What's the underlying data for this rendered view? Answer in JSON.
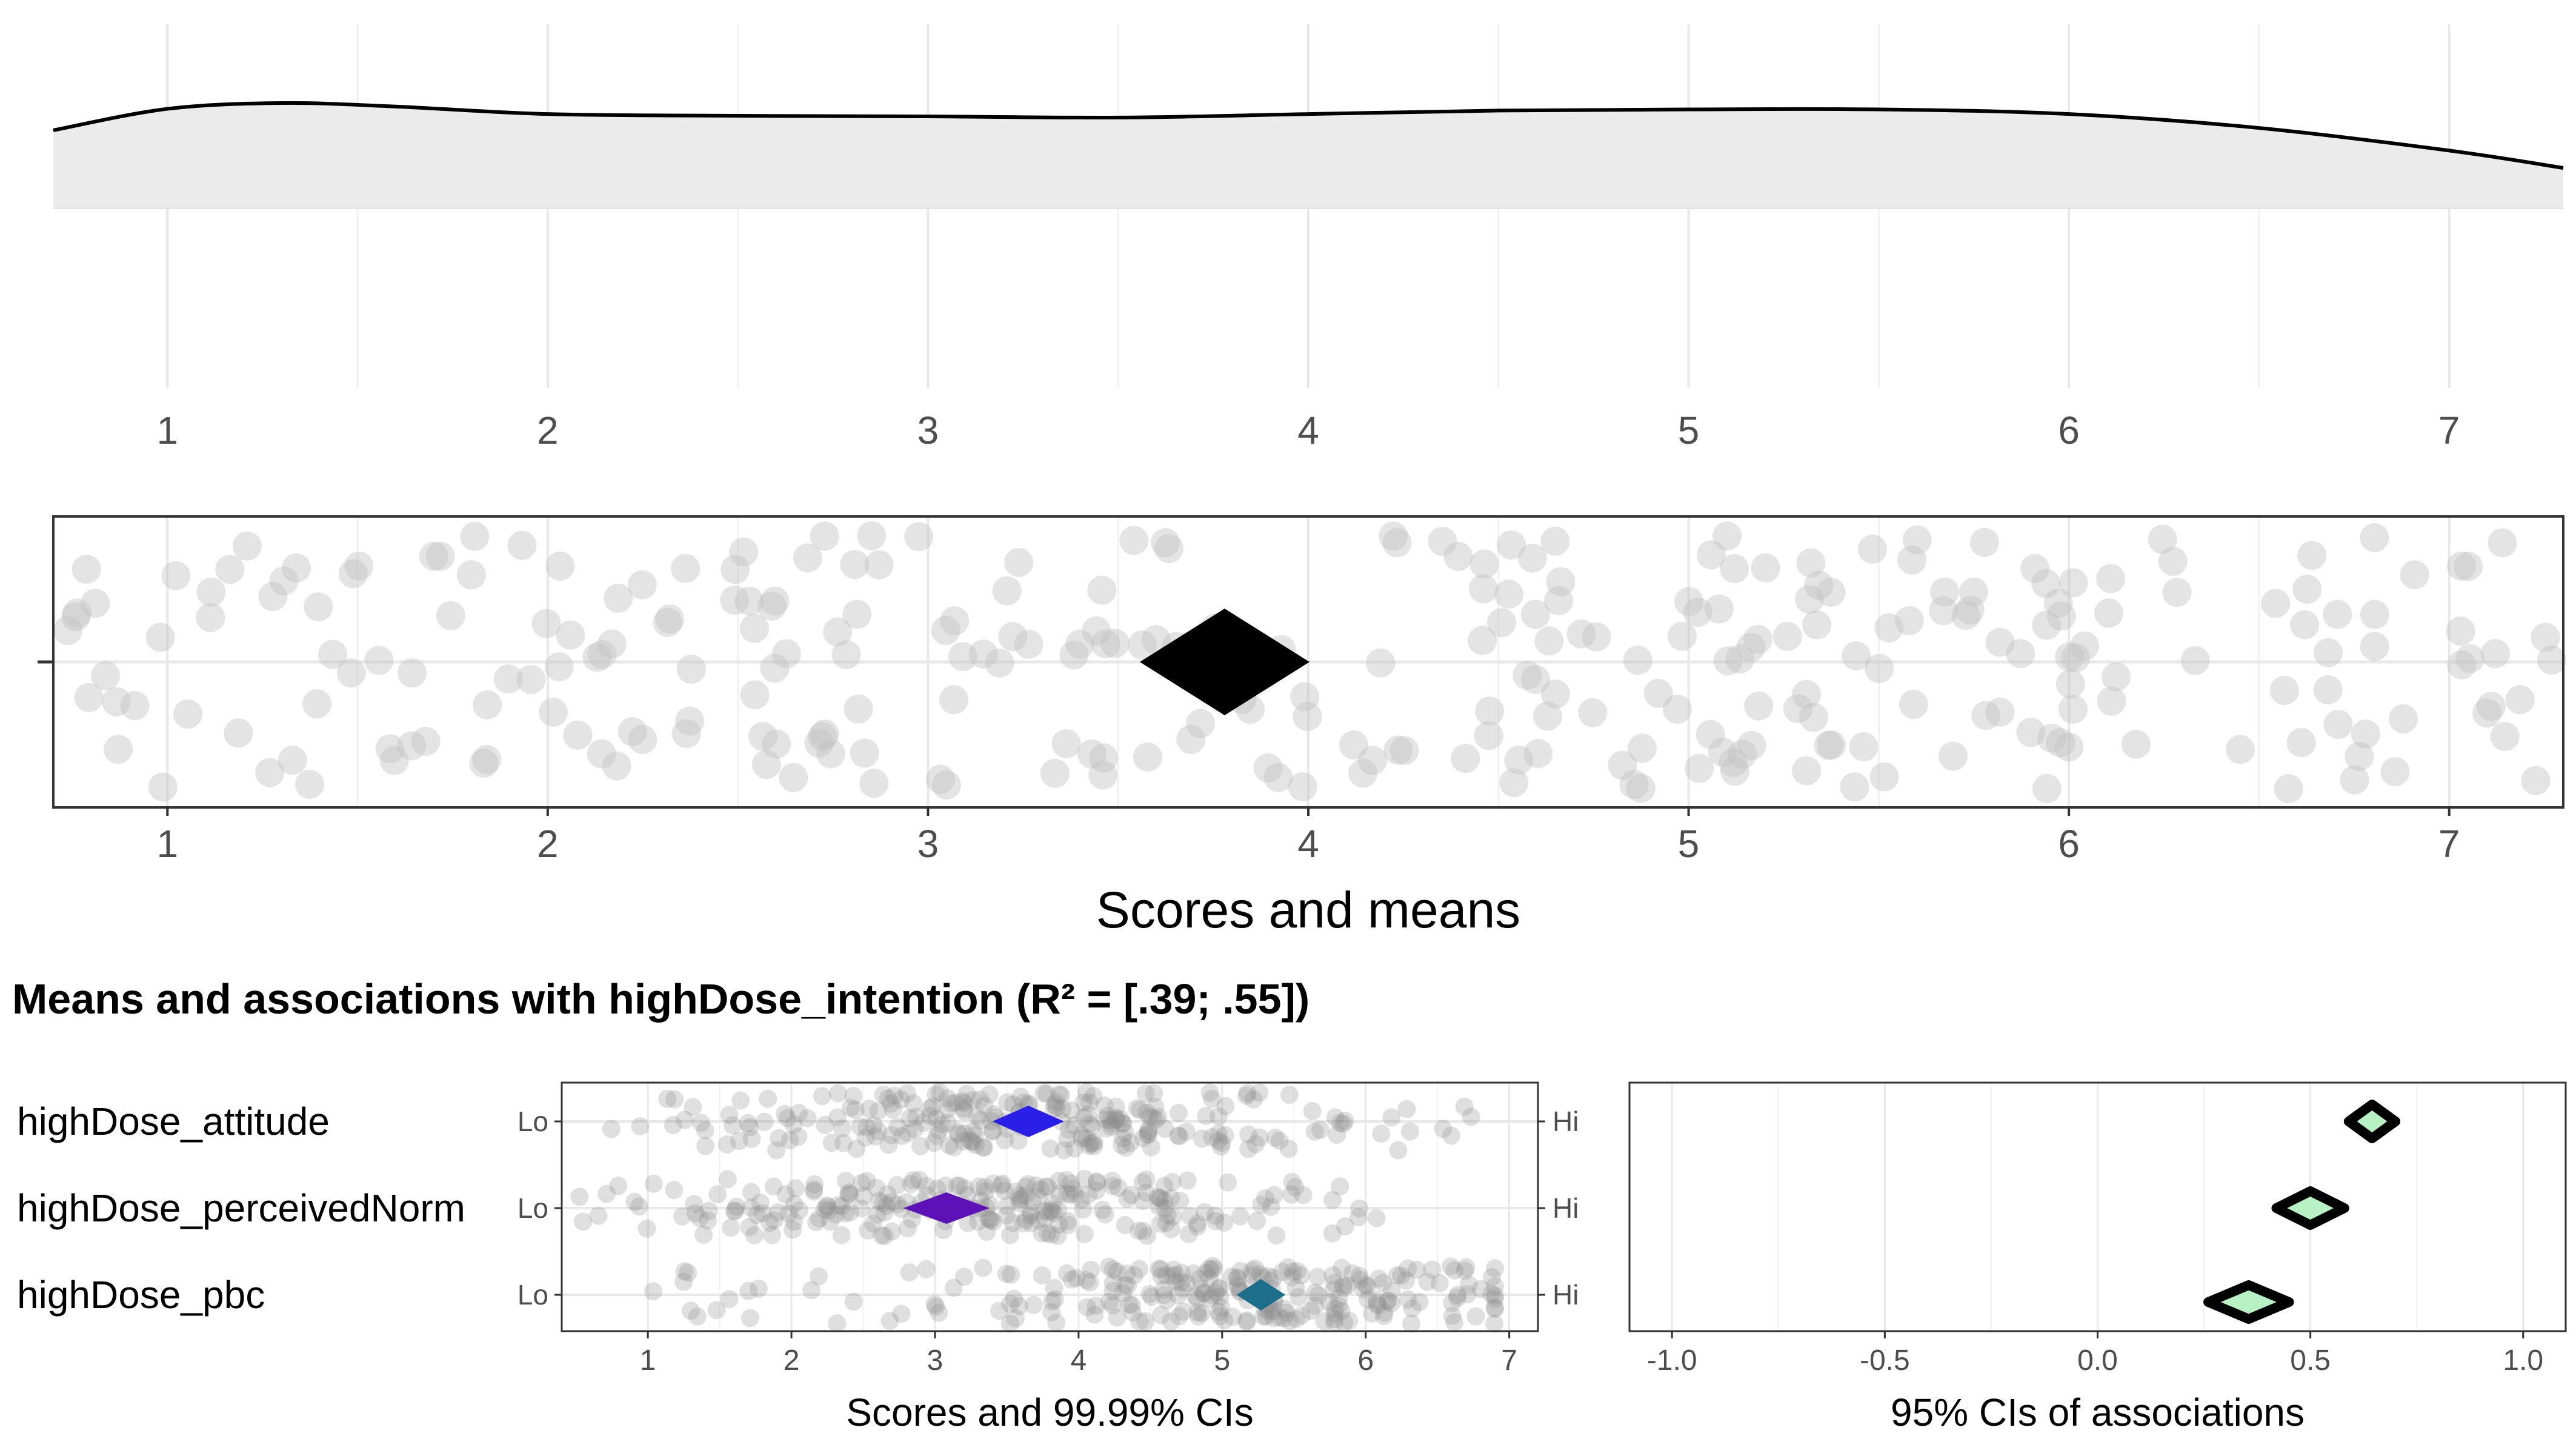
{
  "chart_data": [
    {
      "type": "area",
      "panel": "density",
      "x": [
        0.7,
        1.0,
        1.3,
        1.6,
        2.0,
        2.5,
        3.0,
        3.5,
        4.0,
        4.5,
        5.0,
        5.5,
        6.0,
        6.5,
        7.0,
        7.3
      ],
      "density": [
        0.133,
        0.17,
        0.18,
        0.174,
        0.161,
        0.158,
        0.157,
        0.155,
        0.161,
        0.167,
        0.169,
        0.169,
        0.161,
        0.137,
        0.098,
        0.068
      ],
      "xlim": [
        0.7,
        7.3
      ],
      "x_ticks": [
        "1",
        "2",
        "3",
        "4",
        "5",
        "6",
        "7"
      ],
      "grid": true
    },
    {
      "type": "scatter",
      "panel": "scores",
      "xlabel": "Scores and means",
      "xlim": [
        0.7,
        7.3
      ],
      "x_ticks": [
        "1",
        "2",
        "3",
        "4",
        "5",
        "6",
        "7"
      ],
      "mean": 3.78,
      "point_count": 300,
      "point_range": [
        0.7,
        7.3
      ],
      "grid": true
    },
    {
      "type": "scatter",
      "panel": "item-means",
      "title": "Means and associations with highDose_intention (R² = [.39; .55])",
      "xlabel": "Scores and 99.99% CIs",
      "xlim": [
        0.4,
        7.2
      ],
      "x_ticks": [
        "1",
        "2",
        "3",
        "4",
        "5",
        "6",
        "7"
      ],
      "anchor_low": "Lo",
      "anchor_high": "Hi",
      "items": [
        {
          "label": "highDose_attitude",
          "mean": 3.65,
          "ci": [
            3.4,
            3.9
          ],
          "color": "#2a1fe6",
          "point_range": [
            0.7,
            6.8
          ]
        },
        {
          "label": "highDose_perceivedNorm",
          "mean": 3.08,
          "ci": [
            2.78,
            3.38
          ],
          "color": "#5d12b8",
          "point_range": [
            0.5,
            6.3
          ]
        },
        {
          "label": "highDose_pbc",
          "mean": 5.27,
          "ci": [
            5.1,
            5.44
          ],
          "color": "#1d6e8a",
          "point_range": [
            1.0,
            6.9
          ]
        }
      ]
    },
    {
      "type": "scatter",
      "panel": "associations",
      "xlabel": "95% CIs of associations",
      "xlim": [
        -1.1,
        1.1
      ],
      "x_ticks": [
        "-1.0",
        "-0.5",
        "0.0",
        "0.5",
        "1.0"
      ],
      "associations": [
        {
          "label": "highDose_attitude",
          "point": 0.645,
          "ci": [
            0.59,
            0.7
          ]
        },
        {
          "label": "highDose_perceivedNorm",
          "point": 0.5,
          "ci": [
            0.42,
            0.58
          ]
        },
        {
          "label": "highDose_pbc",
          "point": 0.355,
          "ci": [
            0.26,
            0.45
          ]
        }
      ],
      "fill_color": "#b8f2c4"
    }
  ]
}
